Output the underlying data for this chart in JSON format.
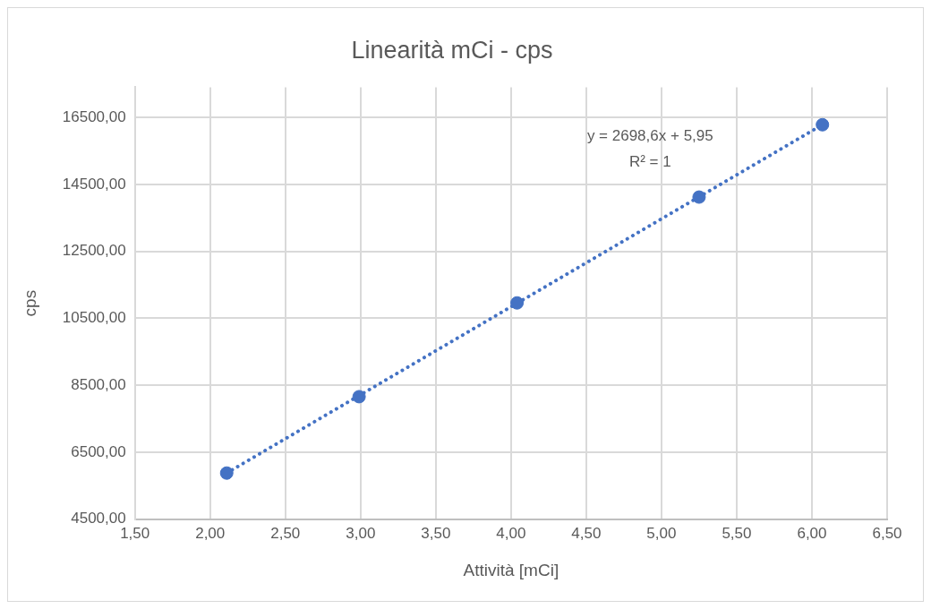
{
  "chart_data": {
    "type": "scatter",
    "title": "Linearità mCi - cps",
    "xlabel": "Attività [mCi]",
    "ylabel": "cps",
    "xlim": [
      1.5,
      6.5
    ],
    "xticks": [
      {
        "value": 1.5,
        "label": "1,50"
      },
      {
        "value": 2,
        "label": "2,00"
      },
      {
        "value": 2.5,
        "label": "2,50"
      },
      {
        "value": 3,
        "label": "3,00"
      },
      {
        "value": 3.5,
        "label": "3,50"
      },
      {
        "value": 4,
        "label": "4,00"
      },
      {
        "value": 4.5,
        "label": "4,50"
      },
      {
        "value": 5,
        "label": "5,00"
      },
      {
        "value": 5.5,
        "label": "5,50"
      },
      {
        "value": 6,
        "label": "6,00"
      },
      {
        "value": 6.5,
        "label": "6,50"
      }
    ],
    "ylim": [
      4500,
      17400
    ],
    "yticks": [
      {
        "value": 4500,
        "label": "4500,00"
      },
      {
        "value": 6500,
        "label": "6500,00"
      },
      {
        "value": 8500,
        "label": "8500,00"
      },
      {
        "value": 10500,
        "label": "10500,00"
      },
      {
        "value": 12500,
        "label": "12500,00"
      },
      {
        "value": 14500,
        "label": "14500,00"
      },
      {
        "value": 16500,
        "label": "16500,00"
      }
    ],
    "grid": true,
    "legend": false,
    "series": [
      {
        "color": "#4472c4",
        "marker": "circle",
        "x": [
          2.11,
          2.99,
          4.04,
          5.25,
          6.07
        ],
        "values": [
          5880,
          8160,
          10960,
          14120,
          16280
        ]
      },
      {
        "type": "line",
        "color": "#4472c4",
        "marker": "none",
        "line_style": "dotted",
        "x": [
          2.11,
          6.07
        ],
        "values": [
          5880,
          16280
        ]
      }
    ],
    "annotations": [
      "y = 2698,6x + 5,95",
      "R² = 1"
    ]
  }
}
